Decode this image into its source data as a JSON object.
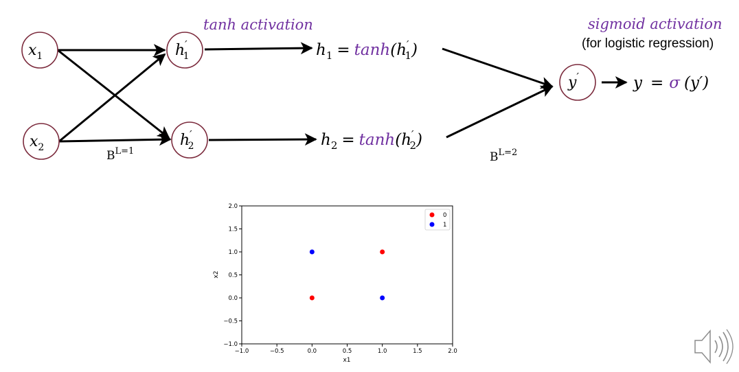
{
  "network": {
    "hidden_activation_label": "tanh activation",
    "output_activation_label": "sigmoid activation",
    "output_note": "(for logistic regression)",
    "nodes": {
      "x1": {
        "base": "x",
        "sub": "1"
      },
      "x2": {
        "base": "x",
        "sub": "2"
      },
      "h1p": {
        "base": "h",
        "sup": "′",
        "sub": "1"
      },
      "h2p": {
        "base": "h",
        "sup": "′",
        "sub": "2"
      },
      "yp": {
        "base": "y",
        "sup": "′"
      }
    },
    "equations": {
      "h1": {
        "lhs": "h",
        "lhs_sub": "1",
        "eq": "=",
        "fn": "tanh",
        "arg_open": "(h",
        "arg_sup": "′",
        "arg_sub": "1",
        "arg_close": ")"
      },
      "h2": {
        "lhs": "h",
        "lhs_sub": "2",
        "eq": "=",
        "fn": "tanh",
        "arg_open": "(h",
        "arg_sup": "′",
        "arg_sub": "2",
        "arg_close": ")"
      },
      "y": {
        "lhs": "y",
        "eq": "=",
        "fn": "σ",
        "arg": "(y′)"
      }
    },
    "weights": {
      "layer1": {
        "base": "B",
        "sup": "L=1"
      },
      "layer2": {
        "base": "B",
        "sup": "L=2"
      }
    },
    "colors": {
      "node_border": "#7b2a3c",
      "function": "#7030a0"
    }
  },
  "chart_data": {
    "type": "scatter",
    "xlabel": "x1",
    "ylabel": "x2",
    "xlim": [
      -1.0,
      2.0
    ],
    "ylim": [
      -1.0,
      2.0
    ],
    "xticks": [
      "−1.0",
      "−0.5",
      "0.0",
      "0.5",
      "1.0",
      "1.5",
      "2.0"
    ],
    "yticks": [
      "−1.0",
      "−0.5",
      "0.0",
      "0.5",
      "1.0",
      "1.5",
      "2.0"
    ],
    "grid": false,
    "legend_position": "top-right",
    "series": [
      {
        "name": "0",
        "color": "#ff0000",
        "x": [
          0,
          1
        ],
        "y": [
          0,
          1
        ]
      },
      {
        "name": "1",
        "color": "#0000ff",
        "x": [
          0,
          1
        ],
        "y": [
          1,
          0
        ]
      }
    ]
  },
  "speaker_icon": "speaker-icon"
}
